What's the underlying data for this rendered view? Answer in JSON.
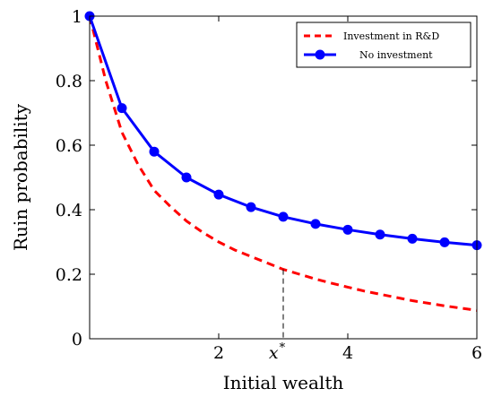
{
  "chart_data": {
    "type": "line",
    "xlabel": "Initial wealth",
    "ylabel": "Ruin probability",
    "xlim": [
      0,
      6
    ],
    "ylim": [
      0,
      1
    ],
    "x_ticks": [
      2,
      4,
      6
    ],
    "y_ticks": [
      0,
      0.2,
      0.4,
      0.6,
      0.8,
      1
    ],
    "x_tick_labels": [
      "2",
      "4",
      "6"
    ],
    "y_tick_labels": [
      "0",
      "0.2",
      "0.4",
      "0.6",
      "0.8",
      "1"
    ],
    "legend_placement": "top-right",
    "annotation": {
      "label": "x*",
      "x": 3,
      "y": 0.215
    },
    "series": [
      {
        "name": "Investment in R&D",
        "color": "#ff0000",
        "style": "dashed",
        "x": [
          0,
          0.25,
          0.5,
          0.75,
          1.0,
          1.25,
          1.5,
          1.75,
          2.0,
          2.25,
          2.5,
          2.75,
          3.0,
          3.25,
          3.5,
          3.75,
          4.0,
          4.25,
          4.5,
          4.75,
          5.0,
          5.25,
          5.5,
          5.75,
          6.0
        ],
        "y": [
          1.0,
          0.8,
          0.64,
          0.54,
          0.46,
          0.41,
          0.365,
          0.33,
          0.3,
          0.275,
          0.255,
          0.235,
          0.215,
          0.2,
          0.185,
          0.172,
          0.16,
          0.148,
          0.138,
          0.128,
          0.118,
          0.11,
          0.102,
          0.095,
          0.088
        ]
      },
      {
        "name": "No investment",
        "color": "#0000ff",
        "style": "solid",
        "marker": "circle",
        "x": [
          0,
          0.5,
          1.0,
          1.5,
          2.0,
          2.5,
          3.0,
          3.5,
          4.0,
          4.5,
          5.0,
          5.5,
          6.0
        ],
        "y": [
          1.0,
          0.715,
          0.58,
          0.5,
          0.447,
          0.408,
          0.378,
          0.356,
          0.338,
          0.323,
          0.31,
          0.299,
          0.29
        ]
      }
    ]
  }
}
